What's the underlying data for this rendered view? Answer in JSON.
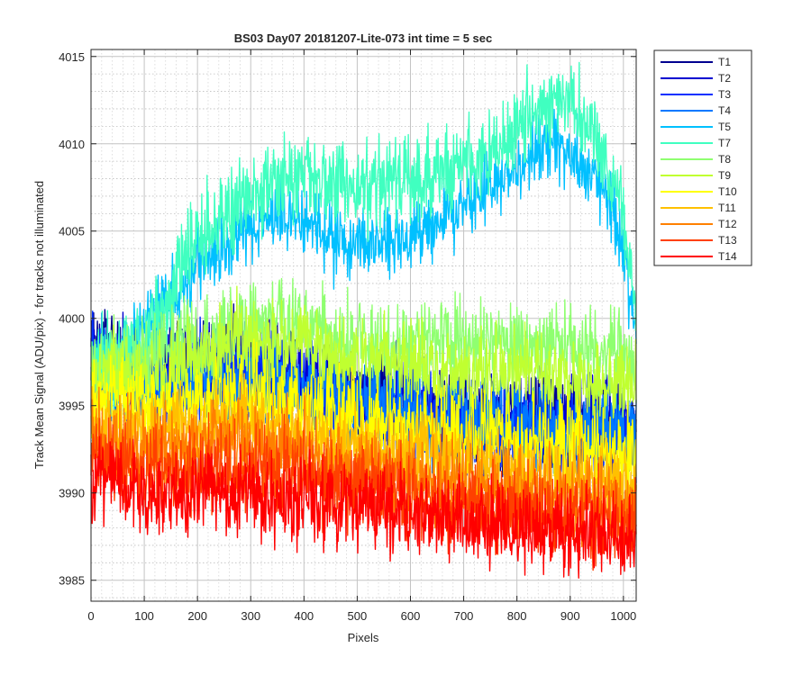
{
  "chart_data": {
    "type": "line",
    "title": "BS03 Day07 20181207-Lite-073 int time = 5 sec",
    "xlabel": "Pixels",
    "ylabel": "Track Mean Signal (ADU/pix) - for tracks not illuminated",
    "xlim": [
      0,
      1024
    ],
    "ylim": [
      3983.8,
      4015.4
    ],
    "xticks": [
      0,
      100,
      200,
      300,
      400,
      500,
      600,
      700,
      800,
      900,
      1000
    ],
    "yticks": [
      3985,
      3990,
      3995,
      4000,
      4005,
      4010,
      4015
    ],
    "grid": true,
    "minor_grid": true,
    "legend_position": "outside-top-right",
    "series": [
      {
        "name": "T1",
        "color": "#00008f",
        "noise": 1.3,
        "points": [
          [
            0,
            3998.5
          ],
          [
            100,
            3996.8
          ],
          [
            200,
            3997.2
          ],
          [
            300,
            3997.5
          ],
          [
            400,
            3996.5
          ],
          [
            500,
            3995.5
          ],
          [
            600,
            3995.0
          ],
          [
            700,
            3994.2
          ],
          [
            800,
            3994.0
          ],
          [
            900,
            3994.2
          ],
          [
            1000,
            3994.0
          ],
          [
            1024,
            3993.5
          ]
        ]
      },
      {
        "name": "T2",
        "color": "#0000d0",
        "noise": 1.3,
        "points": [
          [
            0,
            3998.0
          ],
          [
            100,
            3996.5
          ],
          [
            200,
            3997.0
          ],
          [
            300,
            3997.3
          ],
          [
            400,
            3996.3
          ],
          [
            500,
            3995.3
          ],
          [
            600,
            3994.8
          ],
          [
            700,
            3994.0
          ],
          [
            800,
            3993.8
          ],
          [
            900,
            3994.0
          ],
          [
            1000,
            3993.6
          ],
          [
            1024,
            3993.0
          ]
        ]
      },
      {
        "name": "T3",
        "color": "#0030ff",
        "noise": 1.3,
        "points": [
          [
            0,
            3997.6
          ],
          [
            100,
            3996.2
          ],
          [
            200,
            3996.7
          ],
          [
            300,
            3997.0
          ],
          [
            400,
            3996.0
          ],
          [
            500,
            3995.0
          ],
          [
            600,
            3994.6
          ],
          [
            700,
            3993.8
          ],
          [
            800,
            3993.6
          ],
          [
            900,
            3993.8
          ],
          [
            1000,
            3993.3
          ],
          [
            1024,
            3992.8
          ]
        ]
      },
      {
        "name": "T4",
        "color": "#0078ff",
        "noise": 1.3,
        "points": [
          [
            0,
            3997.2
          ],
          [
            100,
            3996.0
          ],
          [
            200,
            3996.5
          ],
          [
            300,
            3996.8
          ],
          [
            400,
            3996.0
          ],
          [
            500,
            3995.2
          ],
          [
            600,
            3994.8
          ],
          [
            700,
            3994.2
          ],
          [
            800,
            3994.0
          ],
          [
            900,
            3994.0
          ],
          [
            1000,
            3993.5
          ],
          [
            1024,
            3993.0
          ]
        ]
      },
      {
        "name": "T5",
        "color": "#00c0ff",
        "noise": 1.0,
        "points": [
          [
            0,
            3997.0
          ],
          [
            40,
            3997.0
          ],
          [
            80,
            3998.6
          ],
          [
            120,
            4000.0
          ],
          [
            160,
            4001.7
          ],
          [
            200,
            4003.2
          ],
          [
            250,
            4004.0
          ],
          [
            300,
            4005.4
          ],
          [
            350,
            4005.8
          ],
          [
            400,
            4005.4
          ],
          [
            450,
            4004.4
          ],
          [
            500,
            4004.3
          ],
          [
            550,
            4004.5
          ],
          [
            600,
            4004.6
          ],
          [
            650,
            4005.5
          ],
          [
            700,
            4006.6
          ],
          [
            750,
            4007.5
          ],
          [
            800,
            4008.6
          ],
          [
            850,
            4009.8
          ],
          [
            900,
            4009.6
          ],
          [
            950,
            4008.2
          ],
          [
            1000,
            4004.0
          ],
          [
            1024,
            3998.6
          ]
        ]
      },
      {
        "name": "T7",
        "color": "#40ffc0",
        "noise": 1.2,
        "points": [
          [
            0,
            3997.5
          ],
          [
            50,
            3997.8
          ],
          [
            100,
            3998.8
          ],
          [
            150,
            4001.5
          ],
          [
            200,
            4004.5
          ],
          [
            250,
            4005.8
          ],
          [
            300,
            4007.2
          ],
          [
            350,
            4007.8
          ],
          [
            400,
            4008.3
          ],
          [
            450,
            4008.0
          ],
          [
            500,
            4007.2
          ],
          [
            550,
            4007.8
          ],
          [
            600,
            4008.0
          ],
          [
            650,
            4008.4
          ],
          [
            700,
            4009.0
          ],
          [
            750,
            4009.4
          ],
          [
            800,
            4011.0
          ],
          [
            850,
            4012.5
          ],
          [
            900,
            4012.4
          ],
          [
            950,
            4010.5
          ],
          [
            1000,
            4006.0
          ],
          [
            1024,
            4000.5
          ]
        ]
      },
      {
        "name": "T8",
        "color": "#8fff70",
        "noise": 1.2,
        "points": [
          [
            0,
            3997.2
          ],
          [
            100,
            3997.6
          ],
          [
            200,
            3998.8
          ],
          [
            300,
            3999.7
          ],
          [
            400,
            3999.5
          ],
          [
            500,
            3998.5
          ],
          [
            600,
            3998.5
          ],
          [
            700,
            3998.6
          ],
          [
            800,
            3998.5
          ],
          [
            900,
            3998.4
          ],
          [
            1000,
            3998.0
          ],
          [
            1024,
            3997.3
          ]
        ]
      },
      {
        "name": "T9",
        "color": "#c0ff30",
        "noise": 1.2,
        "points": [
          [
            0,
            3996.8
          ],
          [
            100,
            3997.0
          ],
          [
            200,
            3998.0
          ],
          [
            300,
            3998.8
          ],
          [
            400,
            3998.4
          ],
          [
            500,
            3997.5
          ],
          [
            600,
            3997.3
          ],
          [
            700,
            3997.0
          ],
          [
            800,
            3996.8
          ],
          [
            900,
            3996.6
          ],
          [
            1000,
            3996.3
          ],
          [
            1024,
            3996.0
          ]
        ]
      },
      {
        "name": "T10",
        "color": "#ffff00",
        "noise": 1.2,
        "points": [
          [
            0,
            3995.5
          ],
          [
            100,
            3995.0
          ],
          [
            200,
            3995.2
          ],
          [
            300,
            3995.6
          ],
          [
            400,
            3995.0
          ],
          [
            500,
            3994.2
          ],
          [
            600,
            3993.8
          ],
          [
            700,
            3993.4
          ],
          [
            800,
            3993.0
          ],
          [
            900,
            3992.8
          ],
          [
            1000,
            3992.3
          ],
          [
            1024,
            3991.8
          ]
        ]
      },
      {
        "name": "T11",
        "color": "#ffc000",
        "noise": 1.2,
        "points": [
          [
            0,
            3994.0
          ],
          [
            100,
            3993.4
          ],
          [
            200,
            3993.8
          ],
          [
            300,
            3994.0
          ],
          [
            400,
            3993.4
          ],
          [
            500,
            3992.6
          ],
          [
            600,
            3992.3
          ],
          [
            700,
            3991.8
          ],
          [
            800,
            3991.3
          ],
          [
            900,
            3991.0
          ],
          [
            1000,
            3990.6
          ],
          [
            1024,
            3990.2
          ]
        ]
      },
      {
        "name": "T12",
        "color": "#ff8000",
        "noise": 1.2,
        "points": [
          [
            0,
            3993.0
          ],
          [
            100,
            3992.2
          ],
          [
            200,
            3992.6
          ],
          [
            300,
            3992.8
          ],
          [
            400,
            3992.2
          ],
          [
            500,
            3991.4
          ],
          [
            600,
            3991.0
          ],
          [
            700,
            3990.5
          ],
          [
            800,
            3990.1
          ],
          [
            900,
            3989.8
          ],
          [
            1000,
            3989.4
          ],
          [
            1024,
            3989.0
          ]
        ]
      },
      {
        "name": "T13",
        "color": "#ff4000",
        "noise": 1.2,
        "points": [
          [
            0,
            3992.2
          ],
          [
            100,
            3991.2
          ],
          [
            200,
            3991.5
          ],
          [
            300,
            3991.6
          ],
          [
            400,
            3991.0
          ],
          [
            500,
            3990.3
          ],
          [
            600,
            3990.0
          ],
          [
            700,
            3989.4
          ],
          [
            800,
            3989.0
          ],
          [
            900,
            3988.7
          ],
          [
            1000,
            3988.4
          ],
          [
            1024,
            3988.0
          ]
        ]
      },
      {
        "name": "T14",
        "color": "#ff0000",
        "noise": 1.2,
        "points": [
          [
            0,
            3991.2
          ],
          [
            100,
            3989.8
          ],
          [
            200,
            3990.0
          ],
          [
            300,
            3990.0
          ],
          [
            400,
            3989.6
          ],
          [
            500,
            3989.0
          ],
          [
            600,
            3988.8
          ],
          [
            700,
            3988.4
          ],
          [
            800,
            3988.0
          ],
          [
            900,
            3987.7
          ],
          [
            1000,
            3987.5
          ],
          [
            1024,
            3987.2
          ]
        ]
      }
    ]
  }
}
